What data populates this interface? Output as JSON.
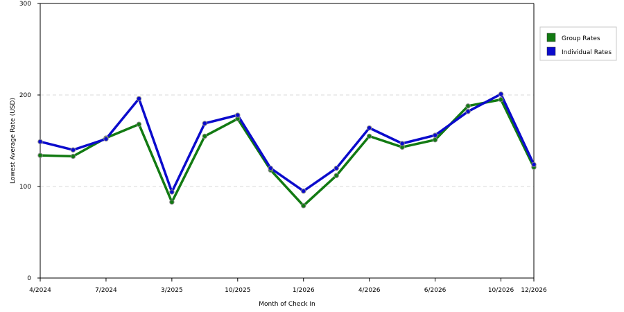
{
  "chart_data": {
    "type": "line",
    "title": "",
    "xlabel": "Month of Check In",
    "ylabel": "Lowest Average Rate (USD)",
    "ylim": [
      0,
      300
    ],
    "y_ticks": [
      0,
      100,
      200,
      300
    ],
    "grid": "horizontal dashed at 100 and 200",
    "legend_position": "right",
    "x_tick_labels": [
      {
        "index": 0,
        "label": "4/2024"
      },
      {
        "index": 2,
        "label": "7/2024"
      },
      {
        "index": 4,
        "label": "3/2025"
      },
      {
        "index": 6,
        "label": "10/2025"
      },
      {
        "index": 8,
        "label": "1/2026"
      },
      {
        "index": 10,
        "label": "4/2026"
      },
      {
        "index": 12,
        "label": "6/2026"
      },
      {
        "index": 14,
        "label": "10/2026"
      },
      {
        "index": 15,
        "label": "12/2026"
      }
    ],
    "series": [
      {
        "name": "Group Rates",
        "color": "#127a12",
        "values": [
          134,
          133,
          153,
          168,
          83,
          155,
          174,
          118,
          79,
          112,
          155,
          143,
          151,
          188,
          195,
          121
        ]
      },
      {
        "name": "Individual Rates",
        "color": "#0b0bcc",
        "values": [
          149,
          140,
          152,
          196,
          94,
          169,
          178,
          120,
          95,
          120,
          164,
          147,
          156,
          182,
          201,
          124
        ]
      }
    ]
  }
}
